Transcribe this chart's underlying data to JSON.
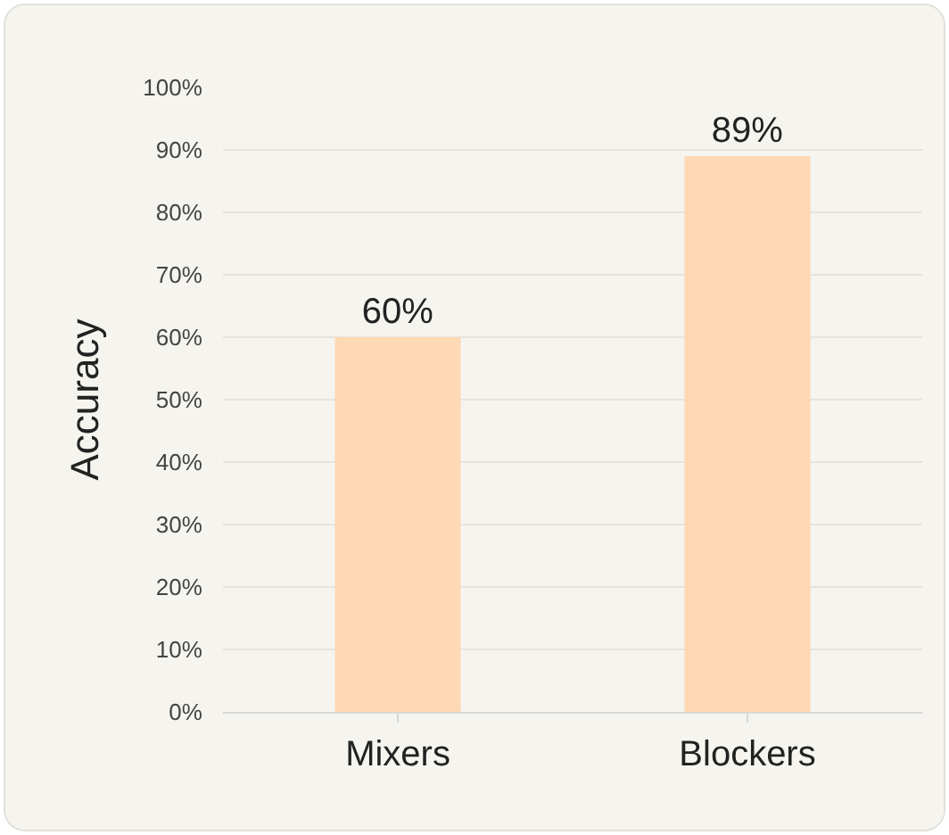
{
  "chart_data": {
    "type": "bar",
    "ylabel": "Accuracy",
    "categories": [
      "Mixers",
      "Blockers"
    ],
    "values": [
      60,
      89
    ],
    "color": "#ffd8b4",
    "value_labels": [
      "60%",
      "89%"
    ],
    "ylim": [
      0,
      100
    ],
    "yticks": [
      {
        "value": 0,
        "label": "0%"
      },
      {
        "value": 10,
        "label": "10%"
      },
      {
        "value": 20,
        "label": "20%"
      },
      {
        "value": 30,
        "label": "30%"
      },
      {
        "value": 40,
        "label": "40%"
      },
      {
        "value": 50,
        "label": "50%"
      },
      {
        "value": 60,
        "label": "60%"
      },
      {
        "value": 70,
        "label": "70%"
      },
      {
        "value": 80,
        "label": "80%"
      },
      {
        "value": 90,
        "label": "90%"
      },
      {
        "value": 100,
        "label": "100%"
      }
    ],
    "grid": "y"
  }
}
